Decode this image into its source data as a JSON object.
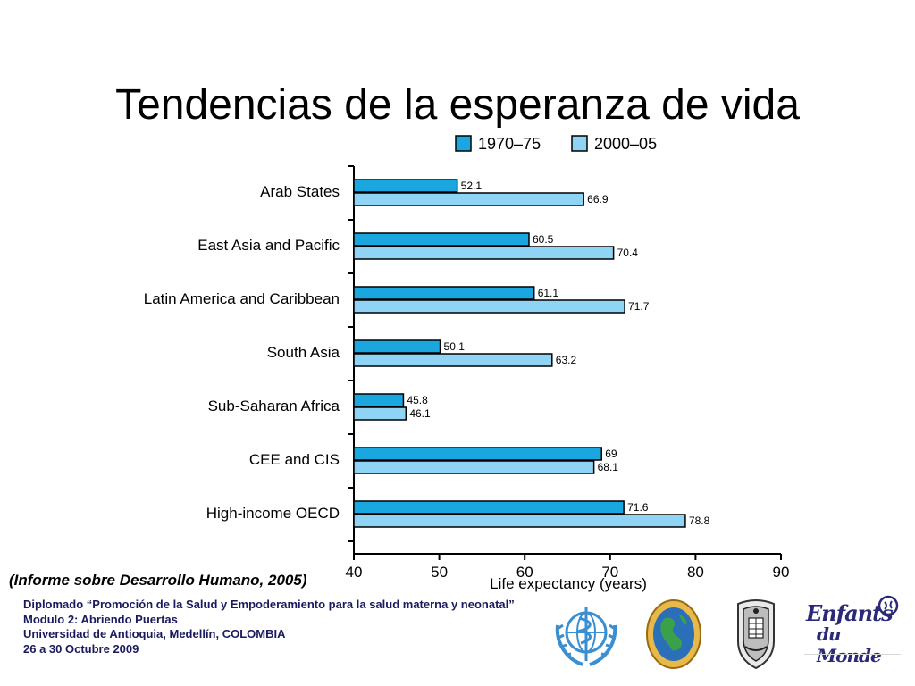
{
  "slide": {
    "title": "Tendencias de la esperanza de vida",
    "source": "(Informe sobre Desarrollo Humano, 2005)",
    "footer": [
      "Diplomado “Promoción de la Salud y Empoderamiento para la salud materna y neonatal”",
      "Modulo 2: Abriendo Puertas",
      "Universidad de Antioquia, Medellín, COLOMBIA",
      "26 a 30 Octubre 2009"
    ],
    "logos": {
      "who": "who-logo-icon",
      "globe": "globe-seal-icon",
      "udea": "university-shield-icon",
      "enfants_top": "Enfants",
      "enfants_bottom": "du Monde"
    }
  },
  "chart_data": {
    "type": "bar",
    "orientation": "horizontal",
    "categories": [
      "Arab States",
      "East Asia and Pacific",
      "Latin America and Caribbean",
      "South Asia",
      "Sub-Saharan Africa",
      "CEE and CIS",
      "High-income OECD"
    ],
    "series": [
      {
        "name": "1970–75",
        "color": "#1aa7e0",
        "values": [
          52.1,
          60.5,
          61.1,
          50.1,
          45.8,
          69,
          71.6
        ]
      },
      {
        "name": "2000–05",
        "color": "#8fd3f5",
        "values": [
          66.9,
          70.4,
          71.7,
          63.2,
          46.1,
          68.1,
          78.8
        ]
      }
    ],
    "value_labels": [
      [
        "52.1",
        "60.5",
        "61.1",
        "50.1",
        "45.8",
        "69",
        "71.6"
      ],
      [
        "66.9",
        "70.4",
        "71.7",
        "63.2",
        "46.1",
        "68.1",
        "78.8"
      ]
    ],
    "xlabel": "Life expectancy (years)",
    "xlim": [
      40,
      90
    ],
    "xticks": [
      40,
      50,
      60,
      70,
      80,
      90
    ],
    "legend_position": "top",
    "grid": false
  }
}
